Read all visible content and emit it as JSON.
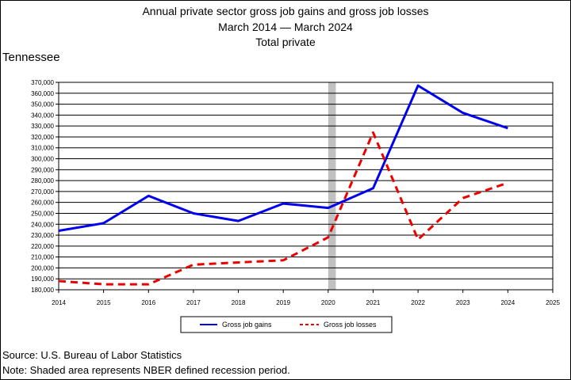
{
  "title_lines": [
    "Annual private sector gross job gains and gross job losses",
    "March 2014 — March 2024",
    "Total private"
  ],
  "subtitle": "Tennessee",
  "source": "Source: U.S. Bureau of Labor Statistics",
  "note": "Note: Shaded area represents NBER defined recession period.",
  "colors": {
    "gains": "#0000ee",
    "losses": "#ee0000",
    "recession": "#c0c0c0",
    "grid": "#000000"
  },
  "chart_data": {
    "type": "line",
    "title": "Annual private sector gross job gains and gross job losses",
    "subtitle": "March 2014 — March 2024",
    "xlabel": "",
    "ylabel": "",
    "x": [
      2014,
      2015,
      2016,
      2017,
      2018,
      2019,
      2020,
      2021,
      2022,
      2023,
      2024
    ],
    "xlim": [
      2014,
      2025
    ],
    "x_ticks": [
      "2014",
      "2015",
      "2016",
      "2017",
      "2018",
      "2019",
      "2020",
      "2021",
      "2022",
      "2023",
      "2024",
      "2025"
    ],
    "ylim": [
      180000,
      370000
    ],
    "y_ticks": [
      "180,000",
      "190,000",
      "200,000",
      "210,000",
      "220,000",
      "230,000",
      "240,000",
      "250,000",
      "260,000",
      "270,000",
      "280,000",
      "290,000",
      "300,000",
      "310,000",
      "320,000",
      "330,000",
      "340,000",
      "350,000",
      "360,000",
      "370,000"
    ],
    "grid": true,
    "legend_position": "bottom",
    "recession": [
      2020,
      2020.17
    ],
    "series": [
      {
        "name": "Gross job gains",
        "style": "solid",
        "values": [
          234000,
          241000,
          266000,
          250000,
          243000,
          259000,
          255000,
          273000,
          367000,
          342000,
          328000
        ]
      },
      {
        "name": "Gross job losses",
        "style": "dashed",
        "values": [
          188000,
          185000,
          185000,
          203000,
          205000,
          207000,
          228000,
          324000,
          226000,
          264000,
          278000
        ]
      }
    ]
  }
}
